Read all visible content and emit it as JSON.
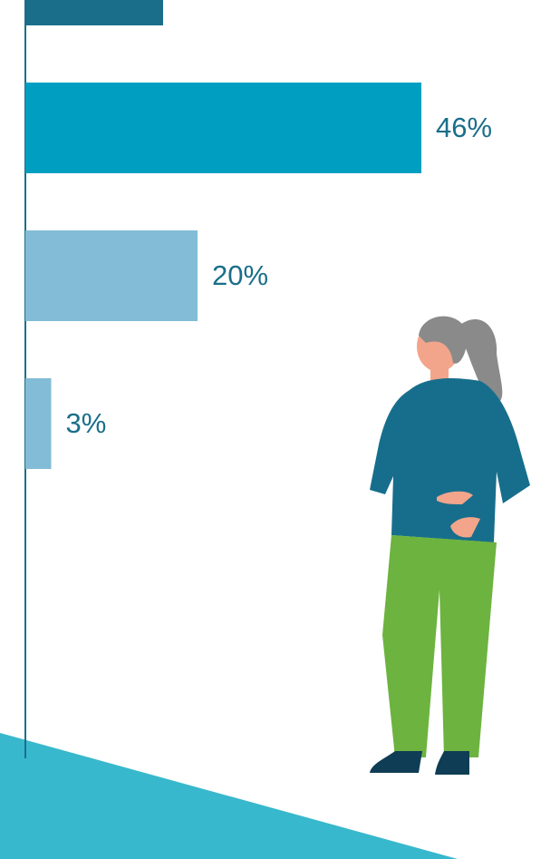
{
  "chart_data": {
    "type": "bar",
    "orientation": "horizontal",
    "values": [
      16,
      46,
      20,
      3
    ],
    "value_labels": [
      null,
      "46%",
      "20%",
      "3%"
    ],
    "colors": [
      "#1a6e8a",
      "#009fc2",
      "#82bcd6",
      "#82bcd6"
    ]
  }
}
